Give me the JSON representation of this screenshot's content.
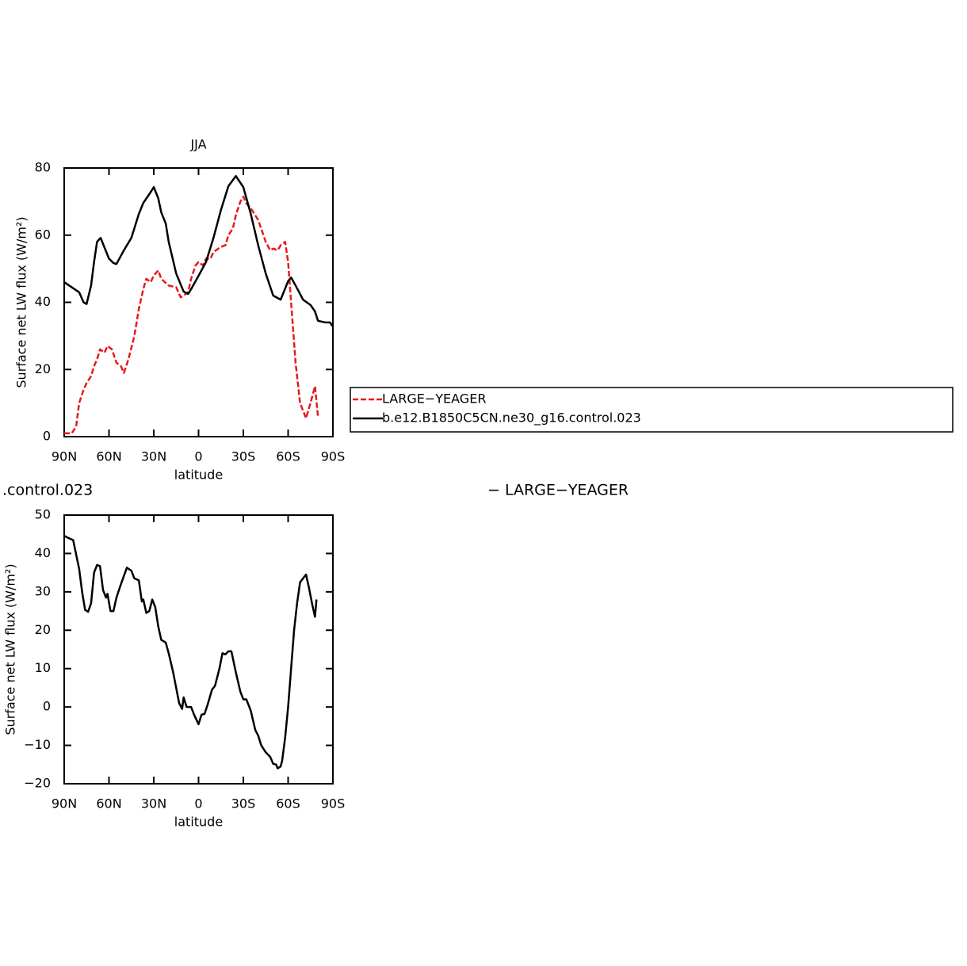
{
  "chart_data": [
    {
      "type": "line",
      "title": "JJA",
      "xlabel": "latitude",
      "ylabel": "Surface net LW flux (W/m²)",
      "xlim": [
        90,
        -90
      ],
      "ylim": [
        0,
        80
      ],
      "xticks": [
        {
          "value": 90,
          "label": "90N"
        },
        {
          "value": 60,
          "label": "60N"
        },
        {
          "value": 30,
          "label": "30N"
        },
        0,
        {
          "value": -30,
          "label": "30S"
        },
        {
          "value": -60,
          "label": "60S"
        },
        {
          "value": -90,
          "label": "90S"
        }
      ],
      "yticks": [
        0,
        20,
        40,
        60,
        80
      ],
      "legend": "outside-right",
      "series": [
        {
          "name": "LARGE−YEAGER",
          "color": "#e8191c",
          "line_style": "dashed",
          "x": [
            90,
            85,
            82,
            80,
            77,
            75,
            72,
            70,
            68,
            66,
            63,
            61,
            58,
            55,
            52,
            50,
            47,
            43,
            40,
            37,
            35,
            32,
            30,
            27,
            25,
            20,
            15,
            12,
            10,
            7,
            5,
            2,
            0,
            -3,
            -5,
            -8,
            -10,
            -15,
            -18,
            -20,
            -23,
            -25,
            -28,
            -30,
            -32,
            -35,
            -40,
            -45,
            -48,
            -50,
            -53,
            -55,
            -58,
            -60,
            -62,
            -65,
            -68,
            -72,
            -75,
            -78,
            -80
          ],
          "values": [
            1,
            1,
            3,
            10,
            14,
            16,
            18,
            21,
            23,
            26,
            25,
            27,
            26,
            22,
            21,
            19,
            23,
            30,
            38,
            44,
            47,
            46,
            48,
            49.5,
            47,
            45,
            44.5,
            41.5,
            42,
            43,
            47,
            51,
            52,
            51,
            53,
            53,
            55,
            56.5,
            57,
            60,
            62,
            66,
            70,
            71.5,
            69.5,
            68,
            64.5,
            58,
            55.5,
            56,
            55.5,
            57,
            58,
            52,
            40,
            22,
            10,
            5.5,
            10,
            15,
            6
          ]
        },
        {
          "name": "b.e12.B1850C5CN.ne30_g16.control.023",
          "color": "#000000",
          "line_style": "solid",
          "x": [
            90,
            85,
            80,
            77,
            75,
            72,
            70,
            68,
            65.6,
            60,
            57,
            55,
            50,
            45,
            40,
            37,
            33,
            30,
            27,
            25,
            22,
            20,
            15,
            10,
            7,
            5,
            0,
            -5,
            -10,
            -15,
            -20,
            -25,
            -30,
            -35,
            -40,
            -45,
            -50,
            -55,
            -60,
            -62,
            -65,
            -70,
            -75,
            -78,
            -80,
            -85,
            -88,
            -90
          ],
          "values": [
            46,
            44.5,
            43,
            40,
            39.5,
            45,
            52,
            58,
            59.2,
            53,
            51.7,
            51.4,
            55.5,
            59.2,
            66.3,
            69.6,
            72.2,
            74.3,
            71,
            66.8,
            63.5,
            58,
            48.6,
            43.2,
            42.5,
            43.9,
            47.9,
            52,
            59.2,
            67.5,
            74.6,
            77.6,
            74.3,
            66.3,
            56.9,
            48.6,
            42,
            40.8,
            46.3,
            47.4,
            45,
            40.8,
            39.2,
            37.3,
            34.5,
            34,
            34,
            32.8
          ]
        }
      ]
    },
    {
      "type": "line",
      "title_left": ".control.023",
      "title_right": "− LARGE−YEAGER",
      "xlabel": "latitude",
      "ylabel": "Surface net LW flux (W/m²)",
      "xlim": [
        90,
        -90
      ],
      "ylim": [
        -20,
        50
      ],
      "xticks": [
        {
          "value": 90,
          "label": "90N"
        },
        {
          "value": 60,
          "label": "60N"
        },
        {
          "value": 30,
          "label": "30N"
        },
        0,
        {
          "value": -30,
          "label": "30S"
        },
        {
          "value": -60,
          "label": "60S"
        },
        {
          "value": -90,
          "label": "90S"
        }
      ],
      "yticks": [
        {
          "value": -20,
          "label": "−20"
        },
        {
          "value": -10,
          "label": "−10"
        },
        0,
        10,
        20,
        30,
        40,
        50
      ],
      "series": [
        {
          "color": "#000000",
          "line_style": "solid",
          "x": [
            90,
            87,
            84,
            80,
            78,
            76,
            74,
            72,
            70,
            68,
            66,
            64,
            62,
            61,
            59,
            57,
            55,
            52,
            48,
            45,
            43,
            40,
            38,
            37,
            35,
            33,
            31,
            29,
            27,
            25,
            22,
            20,
            17,
            15,
            13,
            11,
            10,
            8,
            5,
            3,
            0,
            -2,
            -4,
            -6,
            -9,
            -11,
            -14,
            -16,
            -18,
            -20,
            -22,
            -25,
            -28,
            -30,
            -32,
            -35,
            -38,
            -40,
            -42,
            -45,
            -48,
            -50,
            -52,
            -53,
            -55,
            -56,
            -58,
            -60,
            -62,
            -64,
            -66,
            -68,
            -70,
            -72,
            -74,
            -76,
            -78,
            -79
          ],
          "values": [
            44.6,
            44,
            43.5,
            36,
            30,
            25.3,
            24.8,
            27,
            35,
            37,
            36.7,
            30.5,
            28.5,
            29.5,
            25,
            25,
            28.5,
            32,
            36.3,
            35.5,
            33.5,
            33,
            27.5,
            28,
            24.5,
            25,
            28,
            26,
            21,
            17.5,
            16.8,
            14,
            9,
            5,
            1,
            -0.5,
            2.5,
            0,
            0,
            -2,
            -4.5,
            -2,
            -1.8,
            0.5,
            4.5,
            5.5,
            10,
            14,
            13.7,
            14.5,
            14.5,
            9,
            4,
            2,
            2,
            -1,
            -6,
            -7.5,
            -10,
            -11.8,
            -13,
            -14.8,
            -15,
            -16,
            -15.5,
            -14,
            -8,
            0,
            10,
            20,
            27,
            32.5,
            33.5,
            34.5,
            31,
            27,
            23.5,
            28
          ]
        }
      ]
    }
  ]
}
